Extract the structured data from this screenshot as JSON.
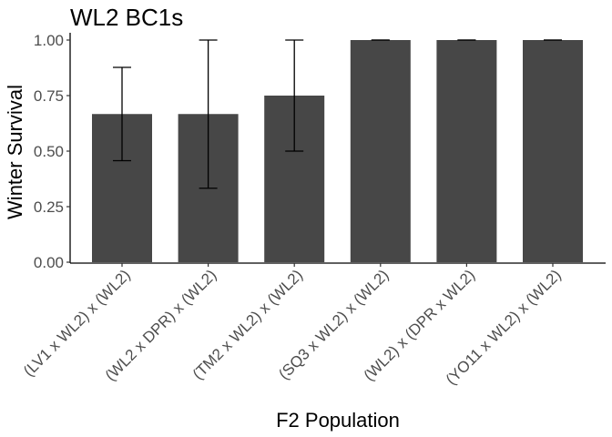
{
  "chart_data": {
    "type": "bar",
    "title": "WL2 BC1s",
    "xlabel": "F2 Population",
    "ylabel": "Winter Survival",
    "categories": [
      "(LV1 x WL2) x (WL2)",
      "(WL2 x DPR) x (WL2)",
      "(TM2 x WL2) x (WL2)",
      "(SQ3 x WL2) x (WL2)",
      "(WL2) x (DPR x WL2)",
      "(YO11 x WL2) x (WL2)"
    ],
    "values": [
      0.667,
      0.667,
      0.75,
      1.0,
      1.0,
      1.0
    ],
    "error_low": [
      0.457,
      0.333,
      0.5,
      1.0,
      1.0,
      1.0
    ],
    "error_high": [
      0.877,
      1.0,
      1.0,
      1.0,
      1.0,
      1.0
    ],
    "ylim": [
      0,
      1
    ],
    "yticks": [
      0,
      0.25,
      0.5,
      0.75,
      1.0
    ],
    "ytick_labels": [
      "0.00",
      "0.25",
      "0.50",
      "0.75",
      "1.00"
    ],
    "grid": false,
    "colors": {
      "bar": "#474747",
      "axis": "#000000",
      "text": "#1a1a1a",
      "tick_text": "#4d4d4d"
    }
  }
}
